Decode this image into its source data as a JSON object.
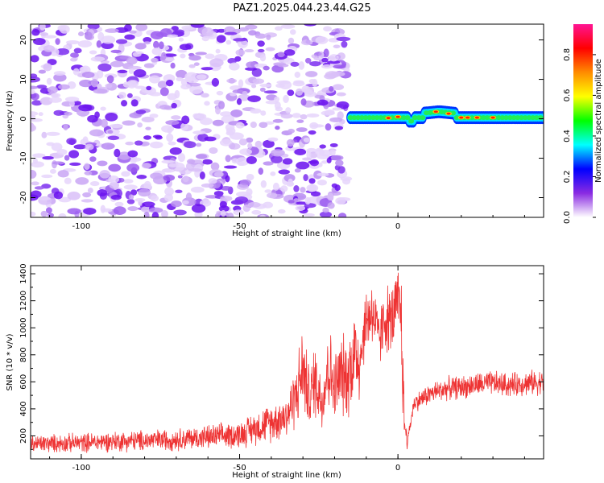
{
  "title": "PAZ1.2025.044.23.44.G25",
  "spectrogram": {
    "xlabel": "Height of straight line (km)",
    "ylabel": "Frequency (Hz)",
    "xlim": [
      -116,
      46
    ],
    "ylim": [
      -25,
      24
    ],
    "x_ticks": [
      -100,
      -50,
      0
    ],
    "y_ticks": [
      20,
      10,
      0,
      -10,
      -20
    ],
    "noise_region_x": [
      -116,
      -16
    ],
    "signal_region_x": [
      -16,
      46
    ],
    "colorbar": {
      "label": "Normalized spectral amplitude",
      "ticks": [
        "0.0",
        "0.2",
        "0.4",
        "0.6",
        "0.8"
      ],
      "range": [
        0,
        0.95
      ],
      "colors": [
        "#ffffff",
        "#8a2be2",
        "#0000ff",
        "#00ffff",
        "#00ff00",
        "#ffff00",
        "#ff8c00",
        "#ff0000",
        "#ff1493"
      ]
    }
  },
  "chart_data": {
    "type": "line",
    "xlabel": "Height of straight line (km)",
    "ylabel": "SNR (10 * v/v)",
    "xlim": [
      -116,
      46
    ],
    "ylim": [
      30,
      1460
    ],
    "x_ticks": [
      -100,
      -50,
      0
    ],
    "y_ticks": [
      200,
      400,
      600,
      800,
      1000,
      1200,
      1400
    ],
    "line_color": "#ee3333",
    "series": [
      {
        "x": [
          -116,
          -100,
          -90,
          -80,
          -70,
          -60,
          -50,
          -45,
          -40,
          -35,
          -32,
          -30,
          -28,
          -26,
          -24,
          -22,
          -20,
          -18,
          -16,
          -14,
          -12,
          -10,
          -8,
          -6,
          -4,
          -2,
          0,
          1,
          2,
          3,
          5,
          10,
          15,
          20,
          25,
          30,
          35,
          40,
          46
        ],
        "y": [
          140,
          150,
          160,
          165,
          175,
          190,
          210,
          260,
          300,
          350,
          520,
          700,
          480,
          620,
          450,
          720,
          550,
          660,
          620,
          800,
          780,
          1060,
          1130,
          900,
          1080,
          1050,
          1180,
          1100,
          300,
          160,
          440,
          510,
          550,
          560,
          580,
          590,
          575,
          590,
          600
        ]
      }
    ]
  }
}
